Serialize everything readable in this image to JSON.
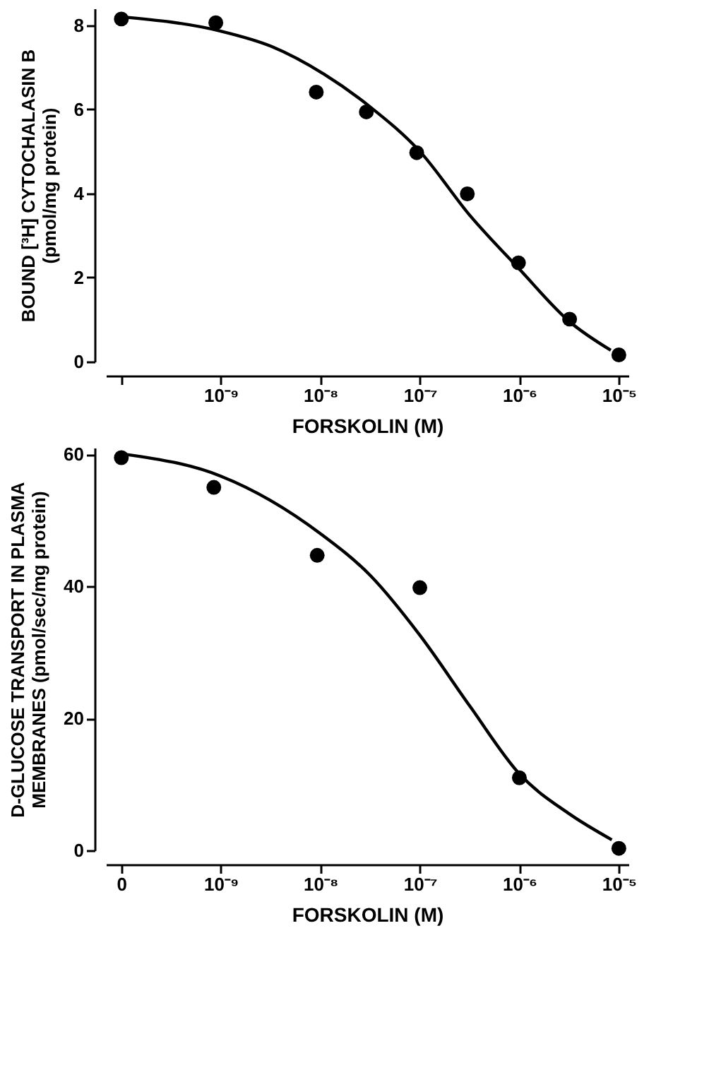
{
  "chart_data": [
    {
      "type": "scatter",
      "xlabel": "FORSKOLIN (M)",
      "ylabel": "BOUND [³H] CYTOCHALASIN B\n(pmol/mg protein)",
      "log": "x",
      "xlim": [
        7e-11,
        1.25e-05
      ],
      "ylim": [
        0,
        8.4
      ],
      "yticks": [
        0,
        2,
        4,
        6,
        8
      ],
      "xticks": [
        {
          "value": 1e-10,
          "label": null
        },
        {
          "value": 1e-09,
          "label": "10⁻⁹"
        },
        {
          "value": 1e-08,
          "label": "10⁻⁸"
        },
        {
          "value": 1e-07,
          "label": "10⁻⁷"
        },
        {
          "value": 1e-06,
          "label": "10⁻⁶"
        },
        {
          "value": 1e-05,
          "label": "10⁻⁵"
        }
      ],
      "grid": false,
      "marker": "circle",
      "series": [
        {
          "color": "#000000",
          "x": [
            1e-10,
            8.9e-10,
            9.1e-09,
            2.9e-08,
            9.3e-08,
            3e-07,
            9.8e-07,
            3.2e-06,
            1e-05
          ],
          "values": [
            8.15,
            8.06,
            6.41,
            5.94,
            4.97,
            3.99,
            2.35,
            1.01,
            0.16
          ]
        },
        {
          "type": "line",
          "color": "#000000",
          "marker": "none",
          "x": [
            1e-10,
            1e-09,
            3.2e-09,
            1.1e-08,
            3.2e-08,
            1e-07,
            3.2e-07,
            1e-06,
            3.2e-06,
            8.3e-06
          ],
          "values": [
            8.2,
            7.86,
            7.5,
            6.83,
            6.05,
            5.0,
            3.47,
            2.2,
            0.95,
            0.27
          ]
        }
      ]
    },
    {
      "type": "scatter",
      "xlabel": "FORSKOLIN (M)",
      "ylabel": "D-GLUCOSE TRANSPORT IN PLASMA\nMEMBRANES (pmol/sec/mg protein)",
      "log": "x",
      "xlim": [
        7e-11,
        1.25e-05
      ],
      "ylim": [
        0,
        61
      ],
      "yticks": [
        0,
        20,
        40,
        60
      ],
      "xticks": [
        {
          "value": 1e-10,
          "label": "0"
        },
        {
          "value": 1e-09,
          "label": "10⁻⁹"
        },
        {
          "value": 1e-08,
          "label": "10⁻⁸"
        },
        {
          "value": 1e-07,
          "label": "10⁻⁷"
        },
        {
          "value": 1e-06,
          "label": "10⁻⁶"
        },
        {
          "value": 1e-05,
          "label": "10⁻⁵"
        }
      ],
      "grid": false,
      "marker": "circle",
      "series": [
        {
          "color": "#000000",
          "x": [
            1e-10,
            8.5e-10,
            9.3e-09,
            1e-07,
            1e-06,
            1e-05
          ],
          "values": [
            59.5,
            55.0,
            44.7,
            39.8,
            11.0,
            0.3
          ]
        },
        {
          "type": "line",
          "color": "#000000",
          "marker": "none",
          "x": [
            1.1e-10,
            1e-09,
            1e-08,
            3.2e-08,
            1e-07,
            3.2e-07,
            1e-06,
            3.2e-06,
            8.5e-06
          ],
          "values": [
            60,
            56.7,
            48,
            41.6,
            32.6,
            21.8,
            11.6,
            5.5,
            1.6
          ]
        }
      ]
    }
  ]
}
